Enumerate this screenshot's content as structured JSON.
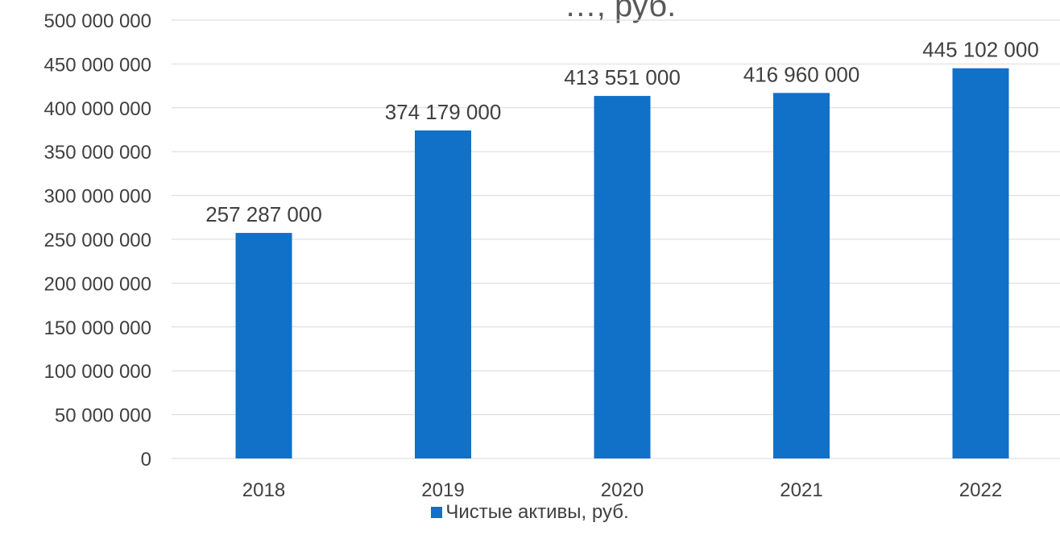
{
  "colors": {
    "bar": "#1170c8",
    "grid": "#d9d9d9",
    "text": "#404040"
  },
  "chart_data": {
    "type": "bar",
    "title": "…, руб.",
    "categories": [
      "2018",
      "2019",
      "2020",
      "2021",
      "2022"
    ],
    "series": [
      {
        "name": "Чистые активы, руб.",
        "values": [
          257287000,
          374179000,
          413551000,
          416960000,
          445102000
        ]
      }
    ],
    "data_labels": [
      "257 287 000",
      "374 179 000",
      "413 551 000",
      "416 960 000",
      "445 102 000"
    ],
    "ytick_labels": [
      "0",
      "50 000 000",
      "100 000 000",
      "150 000 000",
      "200 000 000",
      "250 000 000",
      "300 000 000",
      "350 000 000",
      "400 000 000",
      "450 000 000",
      "500 000 000"
    ],
    "ylim": [
      0,
      500000000
    ],
    "ytick_step": 50000000,
    "grid": true,
    "legend_position": "bottom",
    "xlabel": "",
    "ylabel": ""
  }
}
